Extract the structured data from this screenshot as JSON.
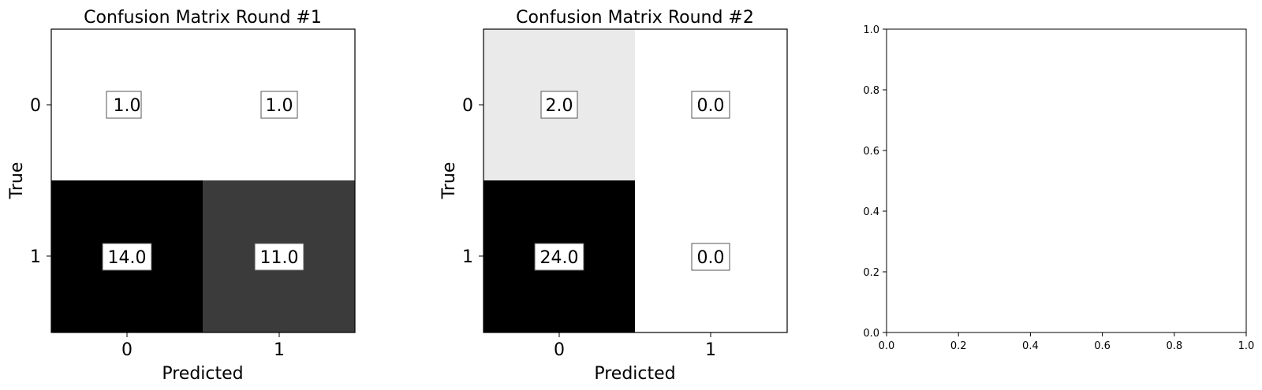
{
  "chart_data": [
    {
      "type": "heatmap",
      "title": "Confusion Matrix Round #1",
      "xlabel": "Predicted",
      "ylabel": "True",
      "x_ticks": [
        "0",
        "1"
      ],
      "y_ticks": [
        "0",
        "1"
      ],
      "values": [
        [
          1.0,
          1.0
        ],
        [
          14.0,
          11.0
        ]
      ],
      "value_labels": [
        [
          "1.0",
          "1.0"
        ],
        [
          "14.0",
          "11.0"
        ]
      ],
      "colormap": "Greys"
    },
    {
      "type": "heatmap",
      "title": "Confusion Matrix Round #2",
      "xlabel": "Predicted",
      "ylabel": "True",
      "x_ticks": [
        "0",
        "1"
      ],
      "y_ticks": [
        "0",
        "1"
      ],
      "values": [
        [
          2.0,
          0.0
        ],
        [
          24.0,
          0.0
        ]
      ],
      "value_labels": [
        [
          "2.0",
          "0.0"
        ],
        [
          "24.0",
          "0.0"
        ]
      ],
      "colormap": "Greys"
    },
    {
      "type": "scatter",
      "title": "",
      "xlabel": "",
      "ylabel": "",
      "xlim": [
        0,
        1
      ],
      "ylim": [
        0,
        1
      ],
      "x_ticks": [
        "0.0",
        "0.2",
        "0.4",
        "0.6",
        "0.8",
        "1.0"
      ],
      "y_ticks": [
        "0.0",
        "0.2",
        "0.4",
        "0.6",
        "0.8",
        "1.0"
      ],
      "series": []
    }
  ]
}
